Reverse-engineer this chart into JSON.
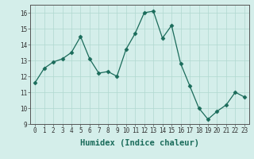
{
  "x": [
    0,
    1,
    2,
    3,
    4,
    5,
    6,
    7,
    8,
    9,
    10,
    11,
    12,
    13,
    14,
    15,
    16,
    17,
    18,
    19,
    20,
    21,
    22,
    23
  ],
  "y": [
    11.6,
    12.5,
    12.9,
    13.1,
    13.5,
    14.5,
    13.1,
    12.2,
    12.3,
    12.0,
    13.7,
    14.7,
    16.0,
    16.1,
    14.4,
    15.2,
    12.8,
    11.4,
    10.0,
    9.3,
    9.8,
    10.2,
    11.0,
    10.7
  ],
  "line_color": "#1a6b5a",
  "marker": "D",
  "marker_size": 2.5,
  "bg_color": "#d4eeea",
  "grid_color": "#b0d8d0",
  "xlabel": "Humidex (Indice chaleur)",
  "ylim": [
    9,
    16.5
  ],
  "xlim": [
    -0.5,
    23.5
  ],
  "yticks": [
    9,
    10,
    11,
    12,
    13,
    14,
    15,
    16
  ],
  "xticks": [
    0,
    1,
    2,
    3,
    4,
    5,
    6,
    7,
    8,
    9,
    10,
    11,
    12,
    13,
    14,
    15,
    16,
    17,
    18,
    19,
    20,
    21,
    22,
    23
  ],
  "tick_fontsize": 5.5,
  "xlabel_fontsize": 7.5,
  "label_color": "#1a6b5a"
}
